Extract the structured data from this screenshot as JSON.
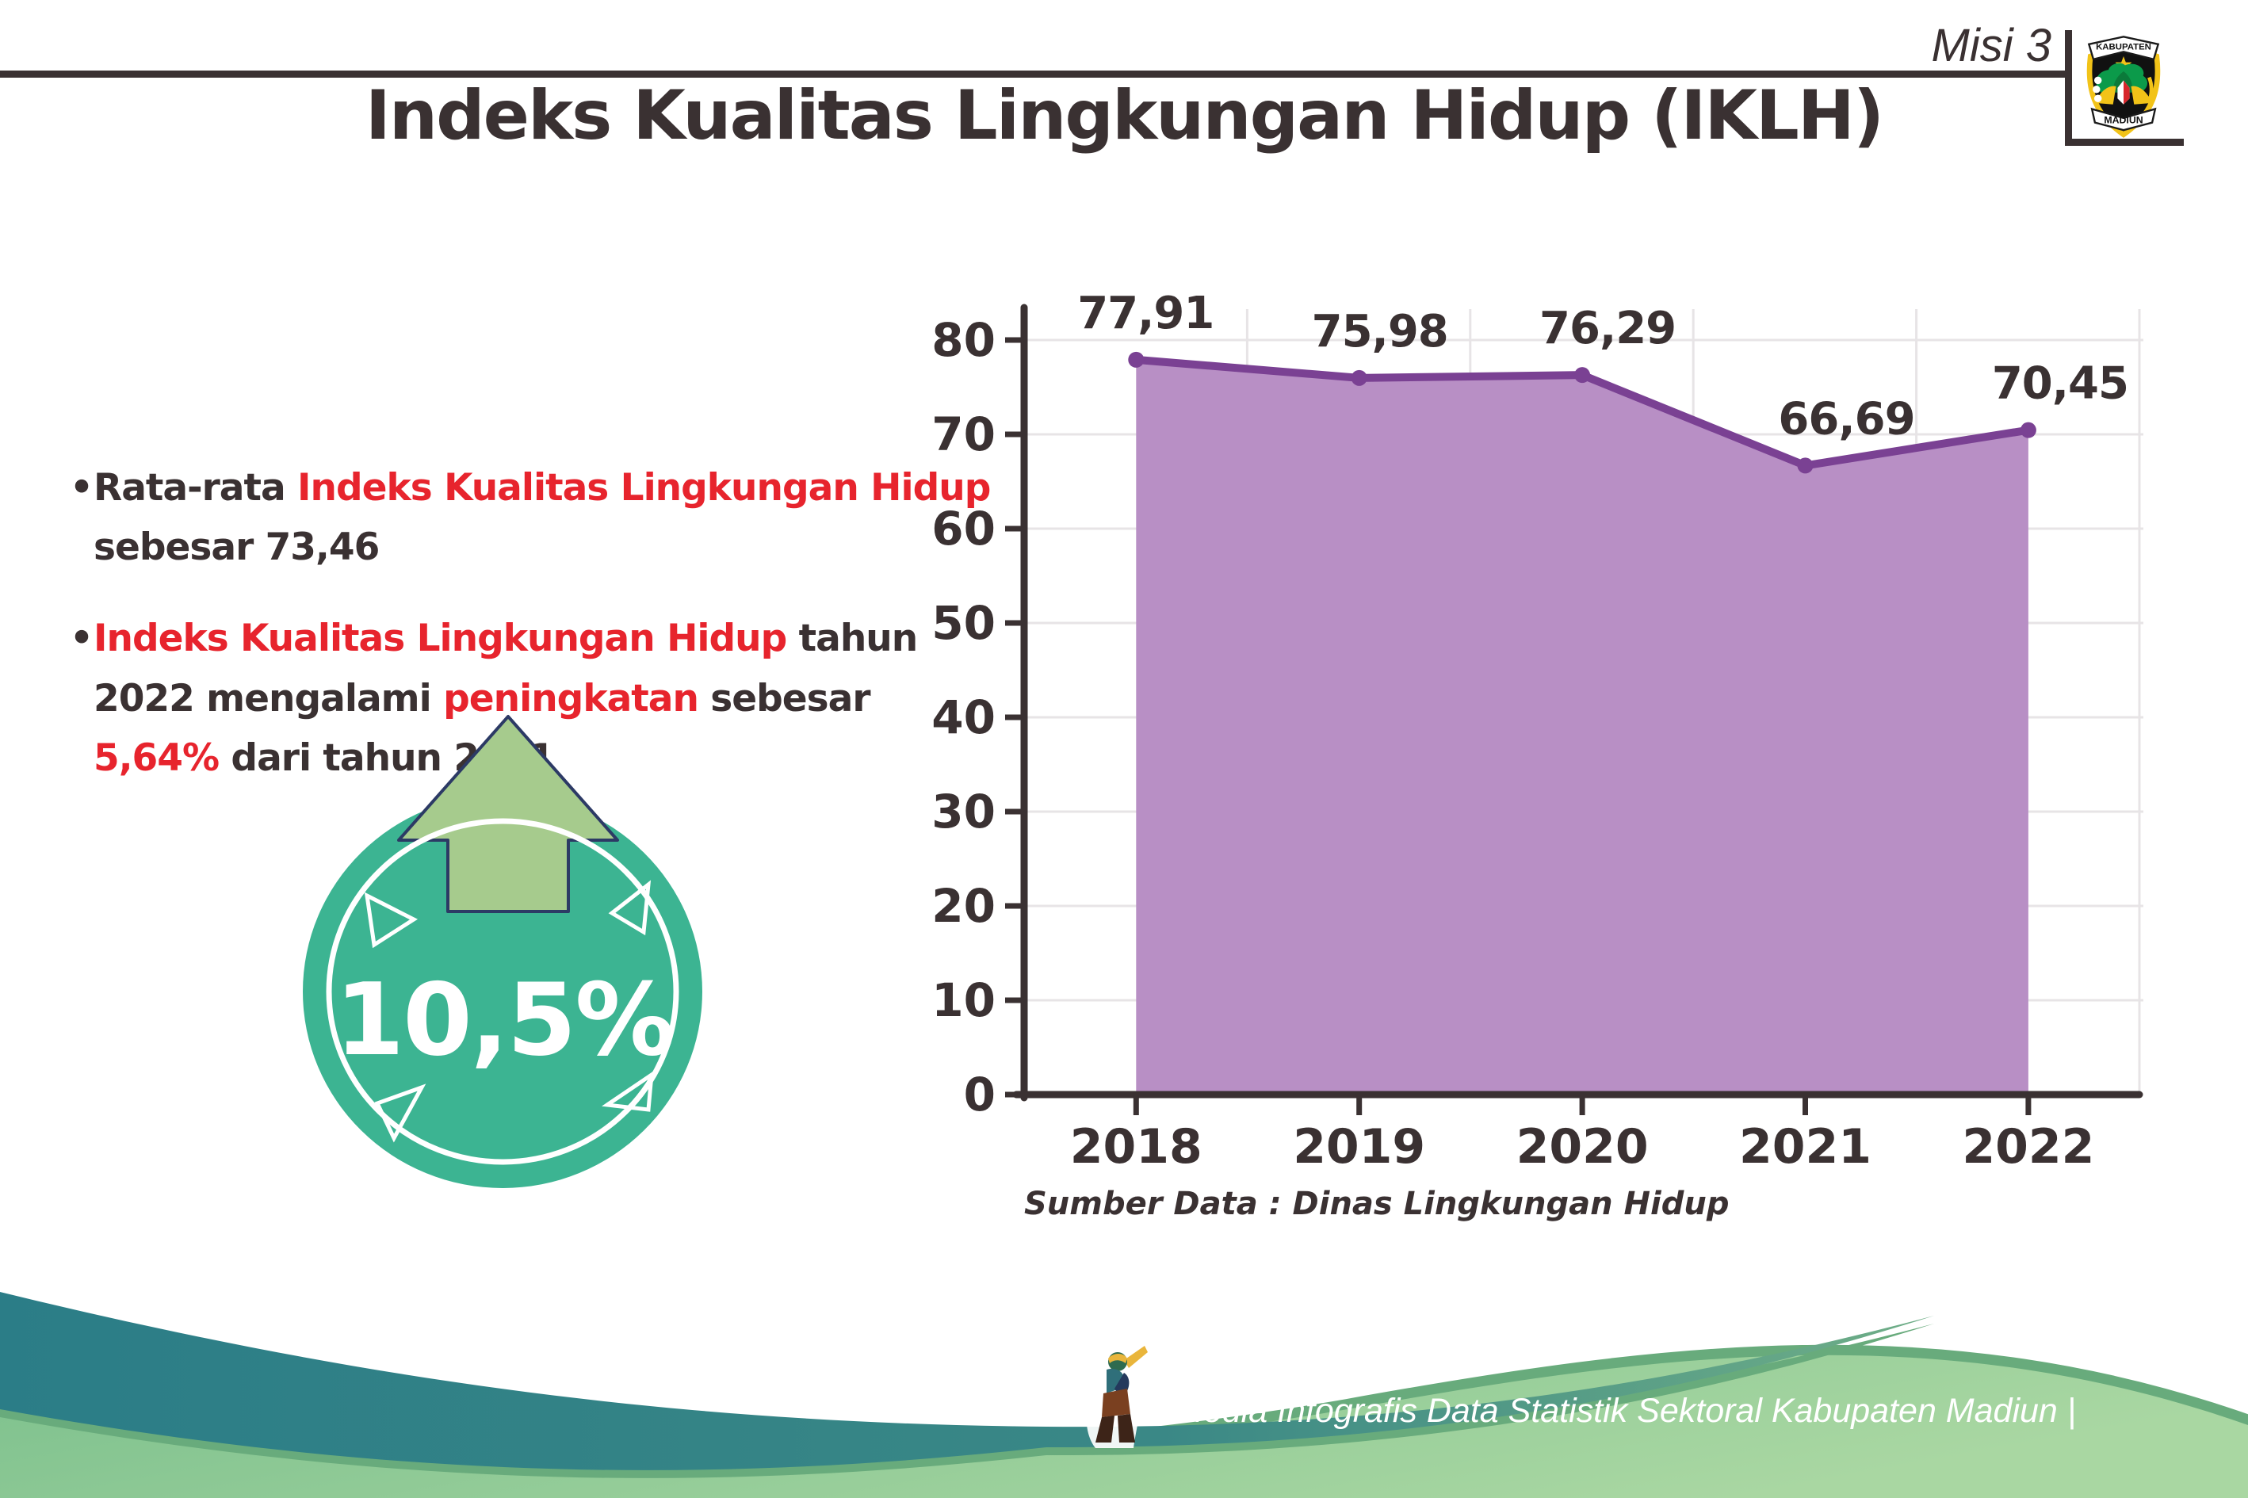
{
  "header": {
    "misi_label": "Misi 3",
    "title": "Indeks Kualitas Lingkungan Hidup (IKLH)",
    "logo": {
      "top_text": "KABUPATEN",
      "bottom_text": "MADIUN"
    }
  },
  "bullets": [
    {
      "segments": [
        {
          "text": "Rata-rata ",
          "color": "dark"
        },
        {
          "text": "Indeks Kualitas Lingkungan Hidup",
          "color": "red"
        },
        {
          "text": " sebesar 73,46",
          "color": "dark"
        }
      ]
    },
    {
      "segments": [
        {
          "text": "Indeks Kualitas Lingkungan Hidup",
          "color": "red"
        },
        {
          "text": " tahun 2022 mengalami ",
          "color": "dark"
        },
        {
          "text": "peningkatan",
          "color": "red"
        },
        {
          "text": " sebesar ",
          "color": "dark"
        },
        {
          "text": "5,64%",
          "color": "red"
        },
        {
          "text": " dari tahun 2021",
          "color": "dark"
        }
      ]
    }
  ],
  "badge": {
    "value": "10,5%",
    "direction": "up"
  },
  "chart_data": {
    "type": "area",
    "categories": [
      "2018",
      "2019",
      "2020",
      "2021",
      "2022"
    ],
    "values": [
      77.91,
      75.98,
      76.29,
      66.69,
      70.45
    ],
    "point_labels": [
      "77,91",
      "75,98",
      "76,29",
      "66,69",
      "70,45"
    ],
    "ylim": [
      0,
      80
    ],
    "ytick_interval": 10,
    "grid": true,
    "legend": "none",
    "line_color": "#7a4193",
    "fill_color": "#b88fc5",
    "source": "Sumber Data : Dinas Lingkungan Hidup"
  },
  "footer": {
    "text": "Media Infografis Data Statistik Sektoral Kabupaten Madiun |"
  },
  "colors": {
    "dark": "#3a3132",
    "red": "#e7242d",
    "grid": "#e7e4e6",
    "badge_teal": "#3cb492",
    "arrow_green": "#a6cb8d",
    "arrow_outline": "#2c3a65",
    "wave_teal_left": "#2b7d87",
    "wave_teal_right": "#6fae87",
    "wave_green_left": "#7cc08d",
    "wave_green_right": "#a9d7a2",
    "wave_green_edge": "#68ab7c"
  }
}
